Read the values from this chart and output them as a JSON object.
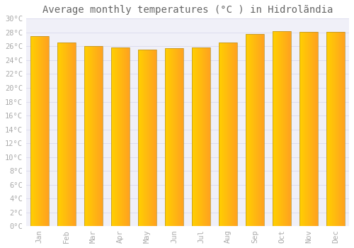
{
  "title": "Average monthly temperatures (°C ) in Hidrolãndia",
  "months": [
    "Jan",
    "Feb",
    "Mar",
    "Apr",
    "May",
    "Jun",
    "Jul",
    "Aug",
    "Sep",
    "Oct",
    "Nov",
    "Dec"
  ],
  "values": [
    27.5,
    26.5,
    26.0,
    25.8,
    25.5,
    25.7,
    25.8,
    26.5,
    27.8,
    28.2,
    28.1,
    28.1
  ],
  "bar_color_left": "#FFD000",
  "bar_color_right": "#FFA020",
  "bar_edge_color": "#B8922A",
  "background_color": "#ffffff",
  "plot_bg_color": "#f0f0f8",
  "grid_color": "#ddddee",
  "title_color": "#666666",
  "label_color": "#aaaaaa",
  "ylim": [
    0,
    30
  ],
  "yticks": [
    0,
    2,
    4,
    6,
    8,
    10,
    12,
    14,
    16,
    18,
    20,
    22,
    24,
    26,
    28,
    30
  ],
  "title_fontsize": 10,
  "tick_fontsize": 7.5,
  "bar_width": 0.7,
  "n_grad": 40
}
